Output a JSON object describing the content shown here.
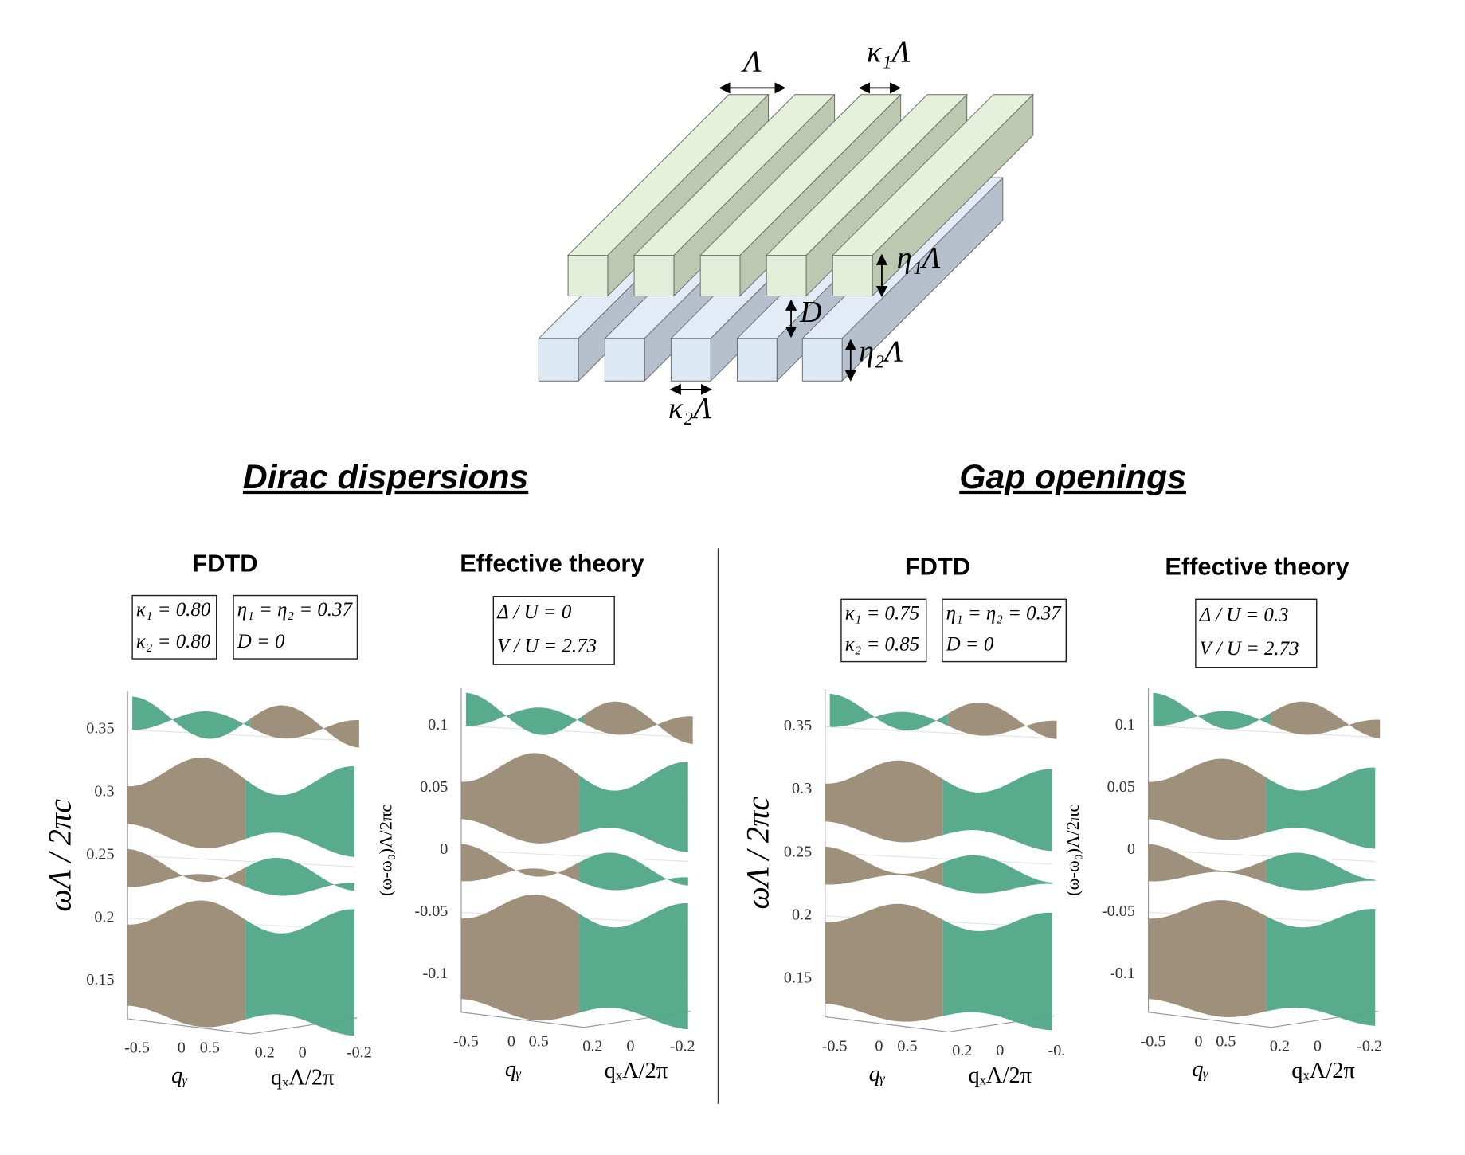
{
  "diagram": {
    "labels": [
      "Λ",
      "κ₁Λ",
      "η₁Λ",
      "D",
      "η₂Λ",
      "κ₂Λ"
    ]
  },
  "sections": [
    {
      "title": "Dirac dispersions",
      "panels": [
        {
          "title": "FDTD",
          "boxes": [
            [
              "κ₁ = 0.80",
              "κ₂ = 0.80"
            ],
            [
              "η₁ = η₂ = 0.37",
              "D = 0"
            ]
          ],
          "yticks": [
            "0.35",
            "0.3",
            "0.25",
            "0.2",
            "0.15"
          ],
          "ylabel": "ωΛ / 2πc",
          "qy_ticks": [
            "-0.5",
            "0",
            "0.5"
          ],
          "qx_ticks": [
            "0.2",
            "0",
            "-0.2"
          ],
          "qy_label": "qᵧ",
          "qx_label": "qₓΛ/2π"
        },
        {
          "title": "Effective theory",
          "boxes": [
            [
              "Δ / U = 0",
              "V / U = 2.73"
            ]
          ],
          "yticks": [
            "0.1",
            "0.05",
            "0",
            "-0.05",
            "-0.1"
          ],
          "ylabel": "(ω-ω₀)Λ/2πc",
          "qy_ticks": [
            "-0.5",
            "0",
            "0.5"
          ],
          "qx_ticks": [
            "0.2",
            "0",
            "-0.2"
          ],
          "qy_label": "qᵧ",
          "qx_label": "qₓΛ/2π"
        }
      ]
    },
    {
      "title": "Gap openings",
      "panels": [
        {
          "title": "FDTD",
          "boxes": [
            [
              "κ₁ = 0.75",
              "κ₂ = 0.85"
            ],
            [
              "η₁ = η₂ = 0.37",
              "D = 0"
            ]
          ],
          "yticks": [
            "0.35",
            "0.3",
            "0.25",
            "0.2",
            "0.15"
          ],
          "ylabel": "ωΛ / 2πc",
          "qy_ticks": [
            "-0.5",
            "0",
            "0.5"
          ],
          "qx_ticks": [
            "0.2",
            "0",
            "-0."
          ],
          "qy_label": "qᵧ",
          "qx_label": "qₓΛ/2π"
        },
        {
          "title": "Effective theory",
          "boxes": [
            [
              "Δ / U = 0.3",
              "V / U = 2.73"
            ]
          ],
          "yticks": [
            "0.1",
            "0.05",
            "0",
            "-0.05",
            "-0.1"
          ],
          "ylabel": "(ω-ω₀)Λ/2πc",
          "qy_ticks": [
            "-0.5",
            "0",
            "0.5"
          ],
          "qx_ticks": [
            "0.2",
            "0",
            "-0.2"
          ],
          "qy_label": "qᵧ",
          "qx_label": "qₓΛ/2π"
        }
      ]
    }
  ]
}
